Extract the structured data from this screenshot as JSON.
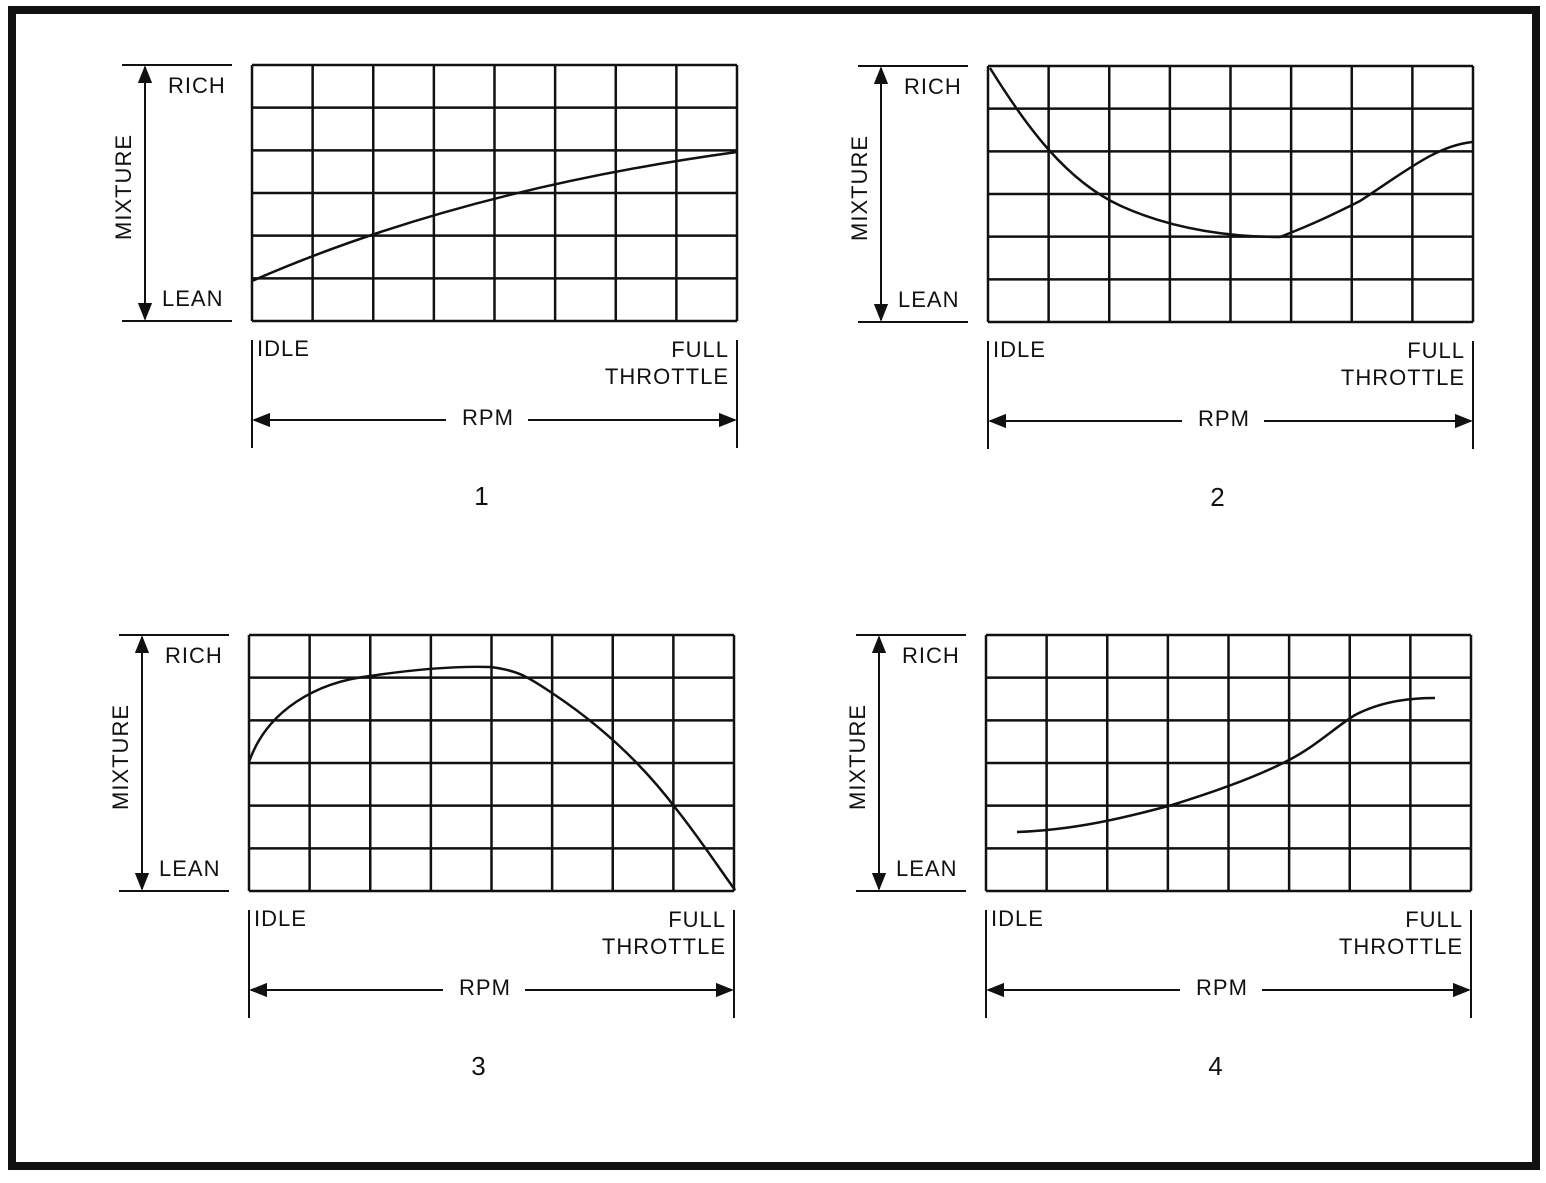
{
  "panels": [
    {
      "y_axis_label": "MIXTURE",
      "y_top": "RICH",
      "y_bottom": "LEAN",
      "x_left": "IDLE",
      "x_right": [
        "FULL",
        "THROTTLE"
      ],
      "x_axis_label": "RPM",
      "number": "1"
    },
    {
      "y_axis_label": "MIXTURE",
      "y_top": "RICH",
      "y_bottom": "LEAN",
      "x_left": "IDLE",
      "x_right": [
        "FULL",
        "THROTTLE"
      ],
      "x_axis_label": "RPM",
      "number": "2"
    },
    {
      "y_axis_label": "MIXTURE",
      "y_top": "RICH",
      "y_bottom": "LEAN",
      "x_left": "IDLE",
      "x_right": [
        "FULL",
        "THROTTLE"
      ],
      "x_axis_label": "RPM",
      "number": "3"
    },
    {
      "y_axis_label": "MIXTURE",
      "y_top": "RICH",
      "y_bottom": "LEAN",
      "x_left": "IDLE",
      "x_right": [
        "FULL",
        "THROTTLE"
      ],
      "x_axis_label": "RPM",
      "number": "4"
    }
  ]
}
